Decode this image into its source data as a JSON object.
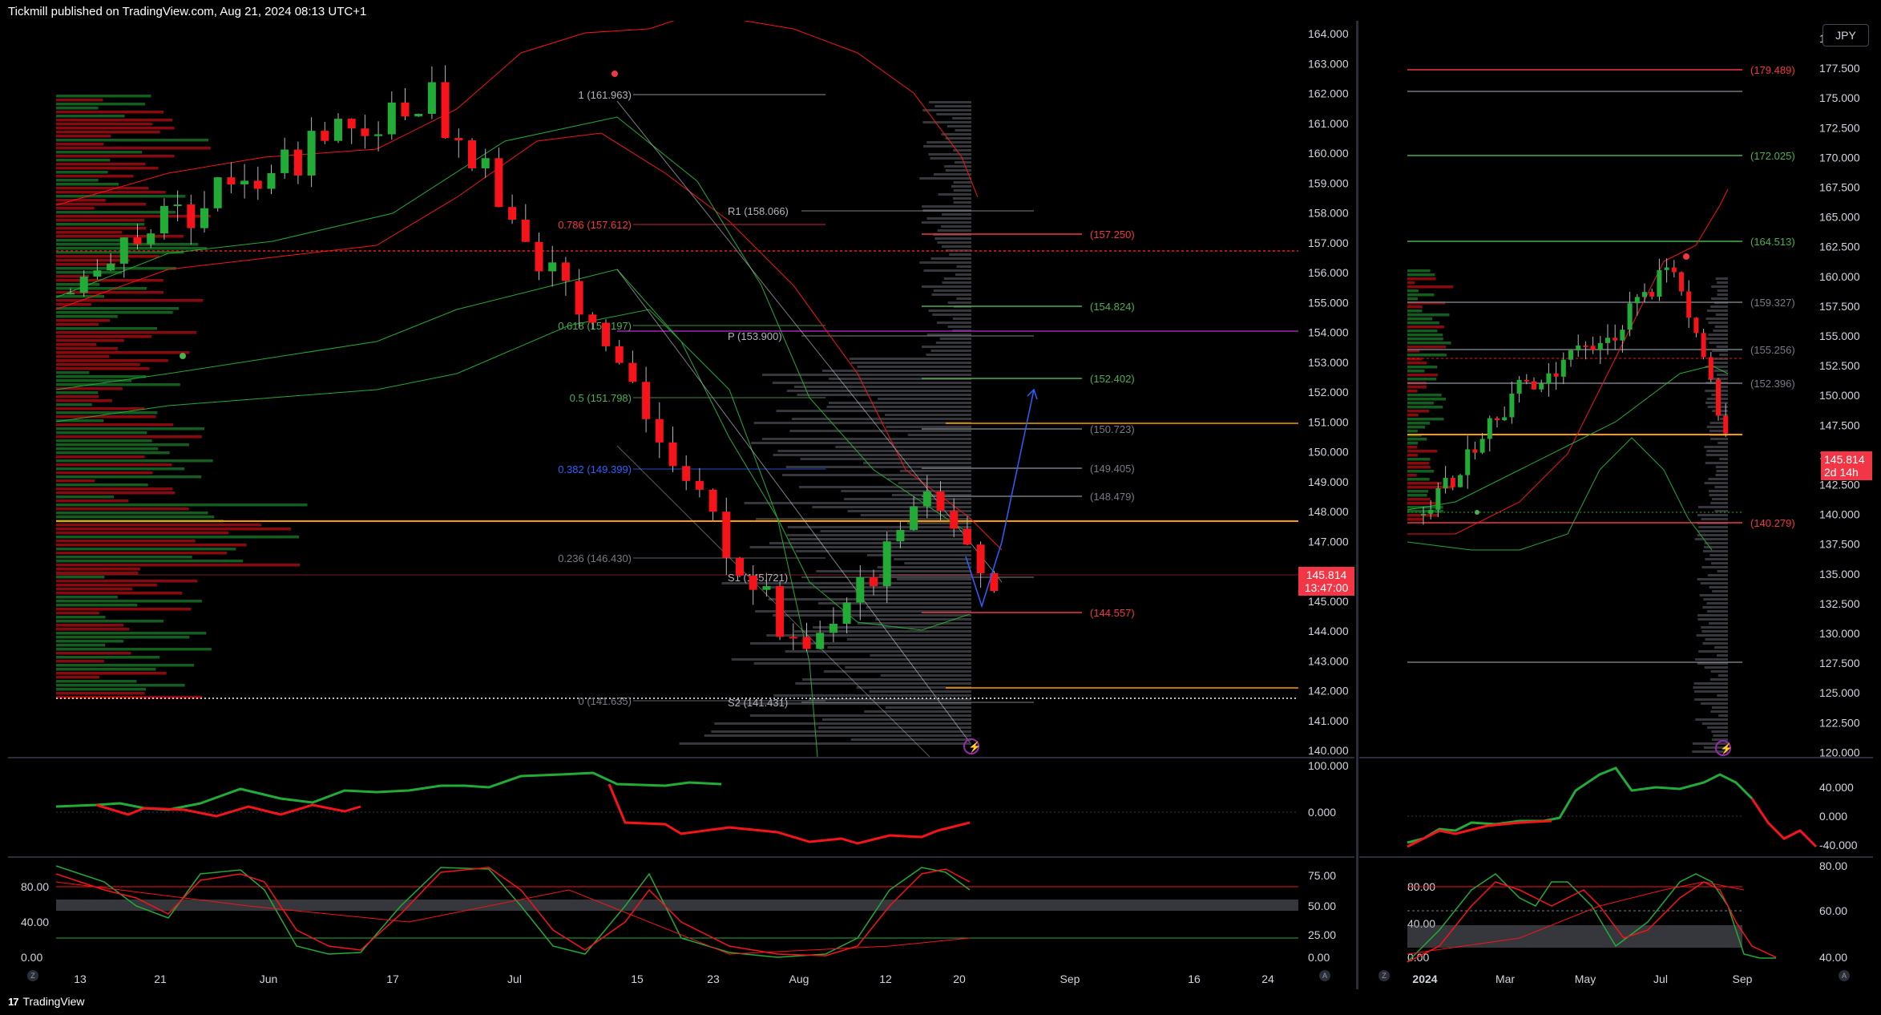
{
  "header": {
    "title": "Tickmill published on TradingView.com, Aug 21, 2024 08:13 UTC+1"
  },
  "footer": {
    "brand": "TradingView",
    "logo": "17"
  },
  "left_chart": {
    "price_ticks": [
      "164.000",
      "163.000",
      "162.000",
      "161.000",
      "160.000",
      "159.000",
      "158.000",
      "157.000",
      "156.000",
      "155.000",
      "154.000",
      "153.000",
      "152.000",
      "151.000",
      "150.000",
      "149.000",
      "148.000",
      "147.000",
      "146.000",
      "145.000",
      "144.000",
      "143.000",
      "142.000",
      "141.000",
      "140.000"
    ],
    "price_tag": {
      "value": "145.814",
      "countdown": "13:47:00"
    },
    "fib_labels": [
      "1 (161.963)",
      "0.786 (157.612)",
      "0.618 (154.197)",
      "0.5 (151.798)",
      "0.382 (149.399)",
      "0.236 (146.430)",
      "0 (141.635)"
    ],
    "pivot_labels": [
      "R1 (158.066)",
      "P (153.900)",
      "S1 (145.721)",
      "S2 (141.431)"
    ],
    "level_labels": [
      "(157.250)",
      "(154.824)",
      "(152.402)",
      "(150.723)",
      "(149.405)",
      "(148.479)",
      "(144.557)"
    ],
    "rsi_ticks": [
      "100.000",
      "0.000"
    ],
    "stoch_left_ticks": [
      "80.00",
      "40.00",
      "0.00"
    ],
    "stoch_right_ticks": [
      "75.00",
      "50.00",
      "25.00",
      "0.00"
    ],
    "time_ticks": [
      "13",
      "21",
      "Jun",
      "17",
      "Jul",
      "15",
      "23",
      "Aug",
      "12",
      "20",
      "Sep",
      "16",
      "24"
    ]
  },
  "right_chart": {
    "currency": "JPY",
    "price_ticks": [
      "180.000",
      "177.500",
      "175.000",
      "172.500",
      "170.000",
      "167.500",
      "165.000",
      "162.500",
      "160.000",
      "157.500",
      "155.000",
      "152.500",
      "150.000",
      "147.500",
      "145.000",
      "142.500",
      "140.000",
      "137.500",
      "135.000",
      "132.500",
      "130.000",
      "127.500",
      "125.000",
      "122.500",
      "120.000"
    ],
    "price_tag": {
      "value": "145.814",
      "countdown": "2d 14h"
    },
    "level_labels": [
      "(179.489)",
      "(172.025)",
      "(164.513)",
      "(159.327)",
      "(155.256)",
      "(152.396)",
      "(140.279)"
    ],
    "rsi_ticks": [
      "40.000",
      "0.000",
      "-40.000"
    ],
    "stoch_left_ticks": [
      "80.00",
      "40.00",
      "0.00"
    ],
    "stoch_right_ticks": [
      "80.00",
      "60.00",
      "40.00"
    ],
    "time_ticks": [
      "2024",
      "Mar",
      "May",
      "Jul",
      "Sep"
    ]
  },
  "colors": {
    "up": "#22ab36",
    "down": "#f7131a",
    "orange": "#ff9800",
    "bg": "#000000",
    "text": "#d1d4dc"
  }
}
